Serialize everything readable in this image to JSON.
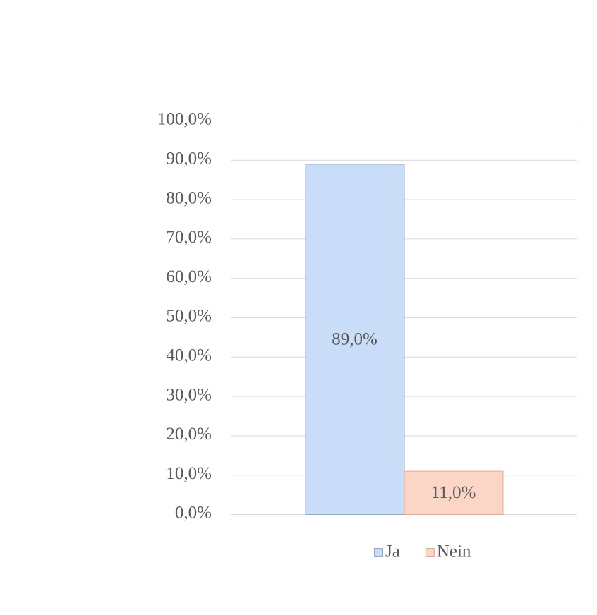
{
  "chart_data": {
    "type": "bar",
    "categories": [
      null
    ],
    "series": [
      {
        "name": "Ja",
        "color": "#c9dcf8",
        "stroke": "#8fa8cf",
        "values": [
          89
        ],
        "value_labels": [
          "89,0%"
        ]
      },
      {
        "name": "Nein",
        "color": "#fbd5c5",
        "stroke": "#f0a888",
        "values": [
          11
        ],
        "value_labels": [
          "11,0%"
        ]
      }
    ],
    "ylim": [
      0,
      100
    ],
    "yticks": [
      {
        "value": 0,
        "label": "0,0%"
      },
      {
        "value": 10,
        "label": "10,0%"
      },
      {
        "value": 20,
        "label": "20,0%"
      },
      {
        "value": 30,
        "label": "30,0%"
      },
      {
        "value": 40,
        "label": "40,0%"
      },
      {
        "value": 50,
        "label": "50,0%"
      },
      {
        "value": 60,
        "label": "60,0%"
      },
      {
        "value": 70,
        "label": "70,0%"
      },
      {
        "value": 80,
        "label": "80,0%"
      },
      {
        "value": 90,
        "label": "90,0%"
      },
      {
        "value": 100,
        "label": "100,0%"
      }
    ],
    "grid": true,
    "legend": "bottom"
  }
}
